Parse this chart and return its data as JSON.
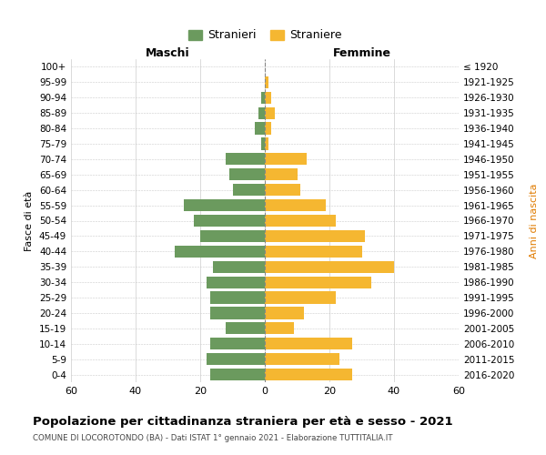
{
  "age_groups": [
    "100+",
    "95-99",
    "90-94",
    "85-89",
    "80-84",
    "75-79",
    "70-74",
    "65-69",
    "60-64",
    "55-59",
    "50-54",
    "45-49",
    "40-44",
    "35-39",
    "30-34",
    "25-29",
    "20-24",
    "15-19",
    "10-14",
    "5-9",
    "0-4"
  ],
  "birth_years": [
    "≤ 1920",
    "1921-1925",
    "1926-1930",
    "1931-1935",
    "1936-1940",
    "1941-1945",
    "1946-1950",
    "1951-1955",
    "1956-1960",
    "1961-1965",
    "1966-1970",
    "1971-1975",
    "1976-1980",
    "1981-1985",
    "1986-1990",
    "1991-1995",
    "1996-2000",
    "2001-2005",
    "2006-2010",
    "2011-2015",
    "2016-2020"
  ],
  "males": [
    0,
    0,
    1,
    2,
    3,
    1,
    12,
    11,
    10,
    25,
    22,
    20,
    28,
    16,
    18,
    17,
    17,
    12,
    17,
    18,
    17
  ],
  "females": [
    0,
    1,
    2,
    3,
    2,
    1,
    13,
    10,
    11,
    19,
    22,
    31,
    30,
    40,
    33,
    22,
    12,
    9,
    27,
    23,
    27
  ],
  "male_color": "#6b9a5e",
  "female_color": "#f5b731",
  "title": "Popolazione per cittadinanza straniera per età e sesso - 2021",
  "subtitle": "COMUNE DI LOCOROTONDO (BA) - Dati ISTAT 1° gennaio 2021 - Elaborazione TUTTITALIA.IT",
  "xlabel_left": "Maschi",
  "xlabel_right": "Femmine",
  "ylabel_left": "Fasce di età",
  "ylabel_right": "Anni di nascita",
  "legend_males": "Stranieri",
  "legend_females": "Straniere",
  "xlim": 60,
  "bg_color": "#ffffff",
  "grid_color": "#cccccc"
}
